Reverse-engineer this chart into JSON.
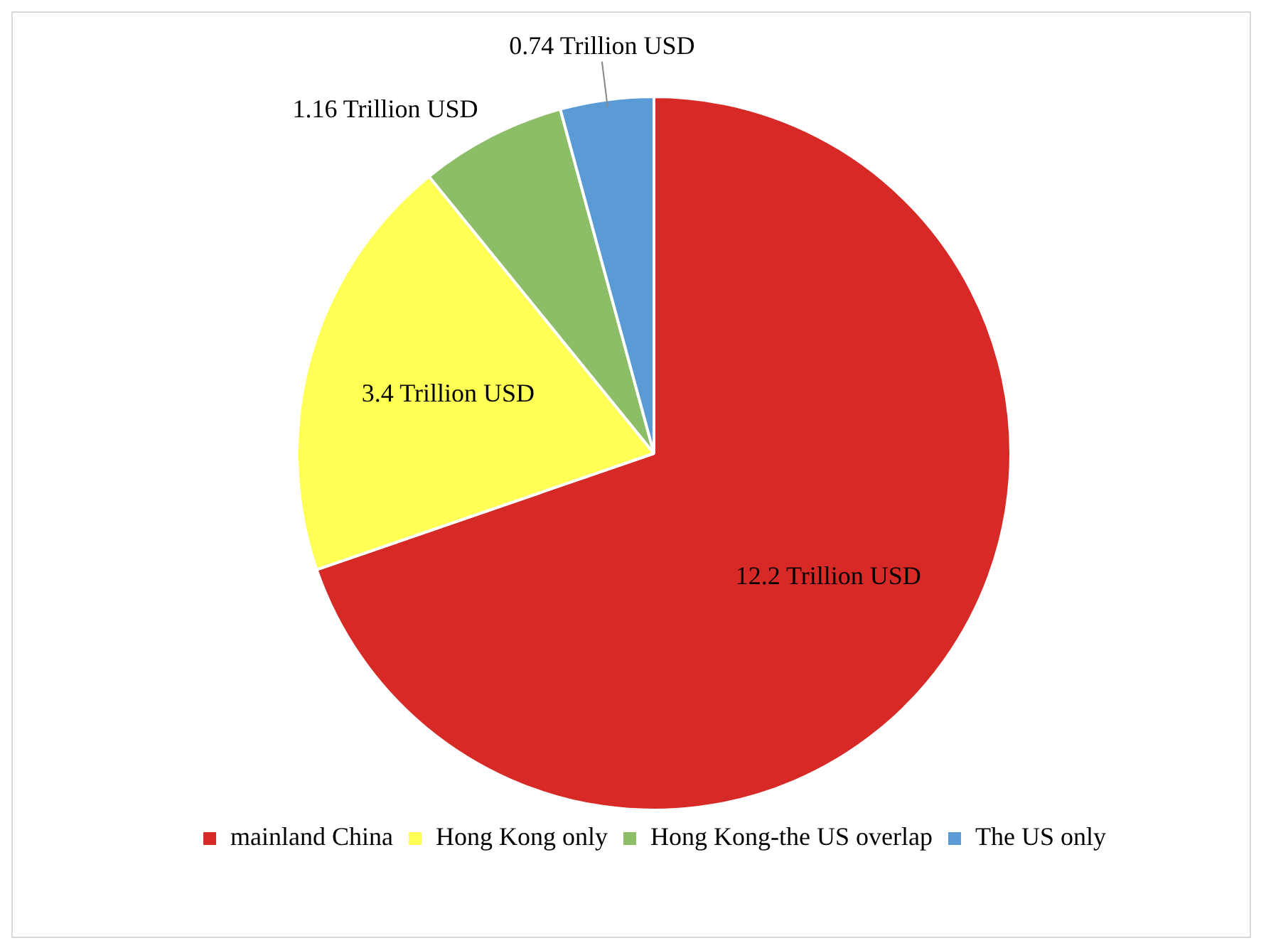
{
  "chart_data": {
    "type": "pie",
    "categories": [
      "mainland China",
      "Hong Kong only",
      "Hong Kong-the US overlap",
      "The US only"
    ],
    "values": [
      12.2,
      3.4,
      1.16,
      0.74
    ],
    "colors": [
      "#d72a27",
      "#ffff55",
      "#8cbd67",
      "#5b9bd5"
    ],
    "value_labels": [
      "12.2 Trillion USD",
      "3.4 Trillion USD",
      "1.16 Trillion USD",
      "0.74 Trillion USD"
    ],
    "legend": "bottom"
  }
}
